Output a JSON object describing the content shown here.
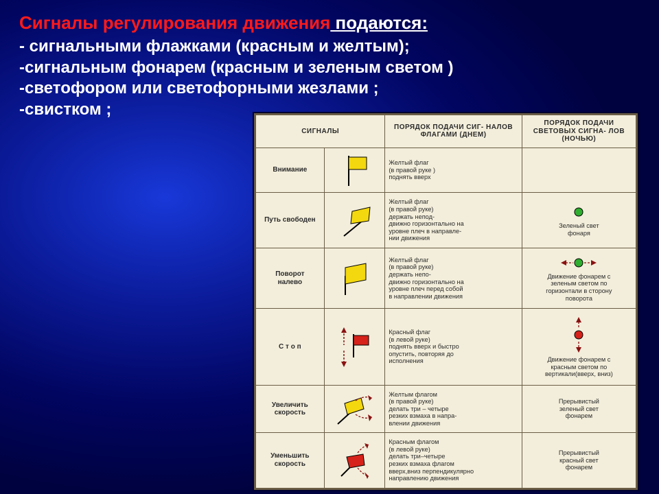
{
  "title_red": "Сигналы регулирования движения",
  "title_white": " подаются:",
  "bullets": [
    "- сигнальными флажками (красным и желтым);",
    "-сигнальным фонарем (красным и зеленым светом )",
    "-светофором или светофорными жезлами ;",
    "-свистком ;"
  ],
  "colors": {
    "yellow": "#f3d80f",
    "red": "#d6221a",
    "green": "#2fae2f",
    "flagstroke": "#000000",
    "arrow": "#8a1212"
  },
  "table": {
    "headers": [
      "СИГНАЛЫ",
      "",
      "ПОРЯДОК ПОДАЧИ СИГ-\nНАЛОВ ФЛАГАМИ (ДНЕМ)",
      "ПОРЯДОК  ПОДАЧИ СВЕТОВЫХ  СИГНА-\nЛОВ (НОЧЬЮ)"
    ],
    "rows": [
      {
        "label": "Внимание",
        "flag": {
          "color": "yellow",
          "orient": "up"
        },
        "dayText": "Желтый флаг\n(в правой руке )\nподнять вверх",
        "nightIcon": null,
        "nightText": ""
      },
      {
        "label": "Путь свободен",
        "flag": {
          "color": "yellow",
          "orient": "side"
        },
        "dayText": "Желтый флаг\n(в правой руке)\nдержать непод-\nдвижно горизонтально на\nуровне плеч в направле-\nнии движения",
        "nightIcon": {
          "color": "green",
          "motion": "static"
        },
        "nightText": "Зеленый свет\nфонаря"
      },
      {
        "label": "Поворот\nналево",
        "flag": {
          "color": "yellow",
          "orient": "front"
        },
        "dayText": "Желтый флаг\n(в правой руке)\nдержать непо-\nдвижно горизонтально на\nуровне плеч перед собой\nв направлении движения",
        "nightIcon": {
          "color": "green",
          "motion": "horiz"
        },
        "nightText": "Движение фонарем с\nзеленым светом по\nгоризонтали в сторону\nповорота"
      },
      {
        "label": "С т о п",
        "flag": {
          "color": "red",
          "orient": "updown"
        },
        "dayText": "Красный флаг\n(в левой руке)\nподнять вверх и быстро\nопустить, повторяя до\nисполнения",
        "nightIcon": {
          "color": "red",
          "motion": "vert"
        },
        "nightText": "Движение фонарем с\nкрасным светом по\nвертикали(вверх, вниз)"
      },
      {
        "label": "Увеличить\nскорость",
        "flag": {
          "color": "yellow",
          "orient": "wave"
        },
        "dayText": "Желтым флагом\n(в правой руке)\nделать три – четыре\nрезких взмаха в напра-\nвлении движения",
        "nightIcon": null,
        "nightText": "Прерывистый\nзеленый свет\nфонарем"
      },
      {
        "label": "Уменьшить\nскорость",
        "flag": {
          "color": "red",
          "orient": "wave-vert"
        },
        "dayText": "Красным флагом\n(в левой руке)\nделать три–четыре\nрезких взмаха флагом\nвверх,вниз перпендикулярно\nнаправлению движения",
        "nightIcon": null,
        "nightText": "Прерывистый\nкрасный свет\nфонарем"
      }
    ]
  }
}
